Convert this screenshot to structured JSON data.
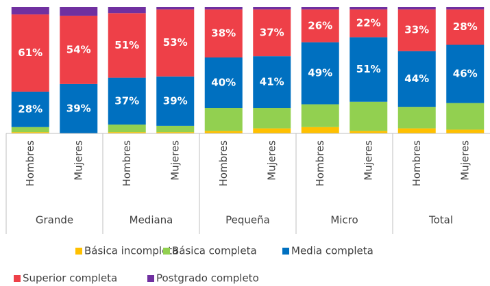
{
  "chart_data": {
    "type": "stacked_bar",
    "categories": [
      "Hombres",
      "Mujeres",
      "Hombres",
      "Mujeres",
      "Hombres",
      "Mujeres",
      "Hombres",
      "Mujeres",
      "Hombres",
      "Mujeres"
    ],
    "groups": [
      "Grande",
      "Mediana",
      "Pequeña",
      "Micro",
      "Total"
    ],
    "ylim": [
      0,
      100
    ],
    "series": [
      {
        "name": "Básica incompleta",
        "color": "#ffc000",
        "values": [
          1,
          0,
          1,
          1,
          2,
          4,
          5,
          2,
          4,
          3
        ]
      },
      {
        "name": "Básica completa",
        "color": "#92d050",
        "values": [
          4,
          0,
          6,
          5,
          18,
          16,
          18,
          23,
          17,
          21
        ]
      },
      {
        "name": "Media completa",
        "color": "#0070c0",
        "values": [
          28,
          39,
          37,
          39,
          40,
          41,
          49,
          51,
          44,
          46
        ],
        "value_labels": [
          "28%",
          "39%",
          "37%",
          "39%",
          "40%",
          "41%",
          "49%",
          "51%",
          "44%",
          "46%"
        ]
      },
      {
        "name": "Superior completa",
        "color": "#ee4048",
        "values": [
          61,
          54,
          51,
          53,
          38,
          37,
          26,
          22,
          33,
          28
        ],
        "value_labels": [
          "61%",
          "54%",
          "51%",
          "53%",
          "38%",
          "37%",
          "26%",
          "22%",
          "33%",
          "28%"
        ]
      },
      {
        "name": "Postgrado completo",
        "color": "#7030a0",
        "values": [
          6,
          7,
          5,
          2,
          2,
          2,
          2,
          2,
          2,
          2
        ]
      }
    ]
  }
}
